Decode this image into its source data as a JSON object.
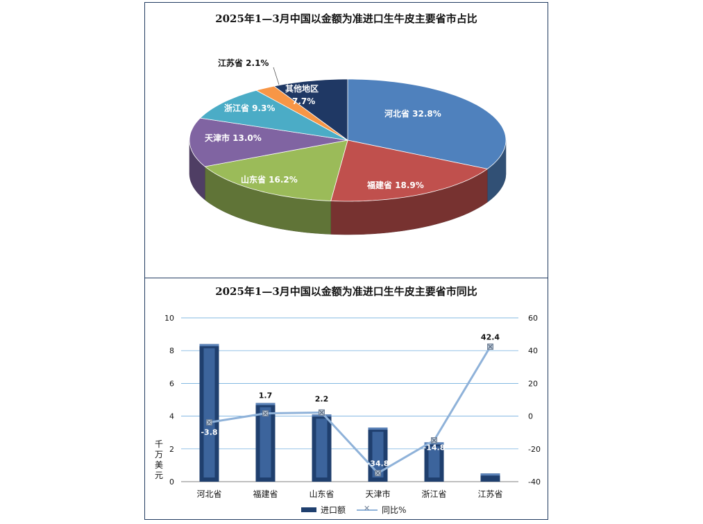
{
  "chart_data": [
    {
      "type": "pie",
      "title": "2025年1—3月中国以金额为准进口生牛皮主要省市占比",
      "slices": [
        {
          "label": "河北省",
          "value": 32.8,
          "text": "河北省 32.8%",
          "color": "#4f81bd"
        },
        {
          "label": "福建省",
          "value": 18.9,
          "text": "福建省 18.9%",
          "color": "#c0504d"
        },
        {
          "label": "山东省",
          "value": 16.2,
          "text": "山东省 16.2%",
          "color": "#9bbb59"
        },
        {
          "label": "天津市",
          "value": 13.0,
          "text": "天津市 13.0%",
          "color": "#8064a2"
        },
        {
          "label": "浙江省",
          "value": 9.3,
          "text": "浙江省 9.3%",
          "color": "#4bacc6"
        },
        {
          "label": "江苏省",
          "value": 2.1,
          "text": "江苏省 2.1%",
          "color": "#f79646"
        },
        {
          "label": "其他地区",
          "value": 7.7,
          "text": "其他地区",
          "text2": "7.7%",
          "color": "#1f3864"
        }
      ]
    },
    {
      "type": "bar",
      "title": "2025年1—3月中国以金额为准进口生牛皮主要省市同比",
      "categories": [
        "河北省",
        "福建省",
        "山东省",
        "天津市",
        "浙江省",
        "江苏省"
      ],
      "series": [
        {
          "name": "进口额",
          "type": "bar",
          "axis": "left",
          "values": [
            8.4,
            4.8,
            4.1,
            3.3,
            2.4,
            0.5
          ],
          "color": "#1f3f6e"
        },
        {
          "name": "同比%",
          "type": "line",
          "axis": "right",
          "values": [
            -3.8,
            1.7,
            2.2,
            -34.8,
            -14.8,
            42.4
          ],
          "labels": [
            "-3.8",
            "1.7",
            "2.2",
            "-34.8",
            "-14.8",
            "42.4"
          ],
          "color": "#8fb2d9"
        }
      ],
      "ylabel": "千万美元",
      "ylim": [
        0,
        10
      ],
      "y2lim": [
        -40,
        60
      ],
      "yticks": [
        "0",
        "2",
        "4",
        "6",
        "8",
        "10"
      ],
      "y2ticks": [
        "-40",
        "-20",
        "0",
        "20",
        "40",
        "60"
      ],
      "grid": true,
      "legend_position": "bottom"
    }
  ]
}
